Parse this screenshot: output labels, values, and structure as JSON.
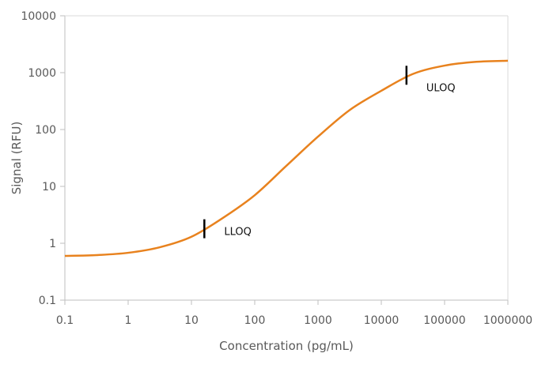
{
  "chart_data": {
    "type": "line",
    "title": "",
    "xlabel": "Concentration (pg/mL)",
    "ylabel": "Signal (RFU)",
    "xscale": "log",
    "yscale": "log",
    "xlim": [
      0.1,
      1000000
    ],
    "ylim": [
      0.1,
      10000
    ],
    "grid": false,
    "x_ticks": [
      "0.1",
      "1",
      "10",
      "100",
      "1000",
      "10000",
      "100000",
      "1000000"
    ],
    "y_ticks": [
      "0.1",
      "1",
      "10",
      "100",
      "1000",
      "10000"
    ],
    "series": [
      {
        "color": "#E8821E",
        "x": [
          0.1,
          0.316,
          1,
          3.16,
          10,
          31.6,
          100,
          316,
          1000,
          3162,
          10000,
          31623,
          100000,
          316228,
          1000000
        ],
        "y": [
          0.6,
          0.62,
          0.68,
          0.85,
          1.3,
          2.8,
          7,
          23,
          75,
          220,
          480,
          950,
          1330,
          1550,
          1620
        ]
      }
    ],
    "annotations": [
      {
        "label": "LLOQ",
        "x": 16,
        "y": 1.8
      },
      {
        "label": "ULOQ",
        "x": 25000,
        "y": 900
      }
    ]
  }
}
